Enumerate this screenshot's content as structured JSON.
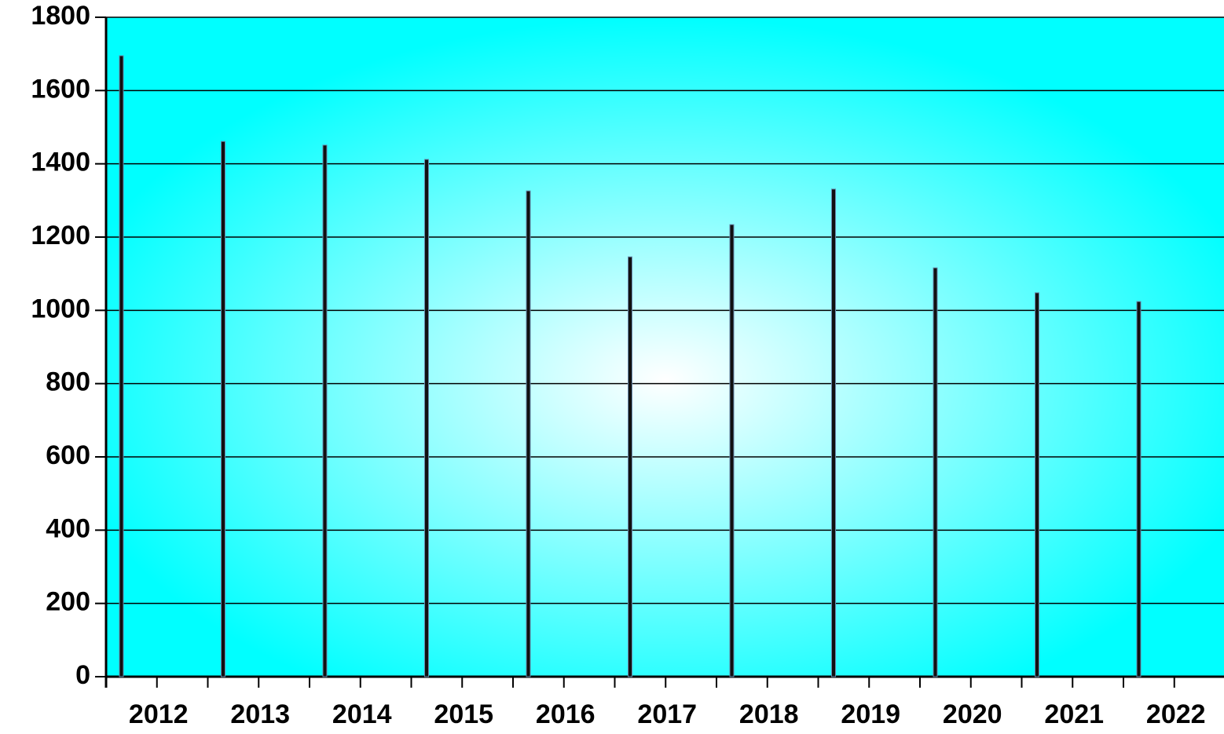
{
  "chart_data": {
    "type": "bar",
    "categories": [
      "2012",
      "2013",
      "2014",
      "2015",
      "2016",
      "2017",
      "2018",
      "2019",
      "2020",
      "2021",
      "2022"
    ],
    "values": [
      1695,
      1461,
      1451,
      1412,
      1326,
      1146,
      1234,
      1331,
      1116,
      1048,
      1024
    ],
    "color": "#111111",
    "ylim": [
      0,
      1800
    ],
    "yticks": [
      0,
      200,
      400,
      600,
      800,
      1000,
      1200,
      1400,
      1600,
      1800
    ],
    "grid": true
  }
}
